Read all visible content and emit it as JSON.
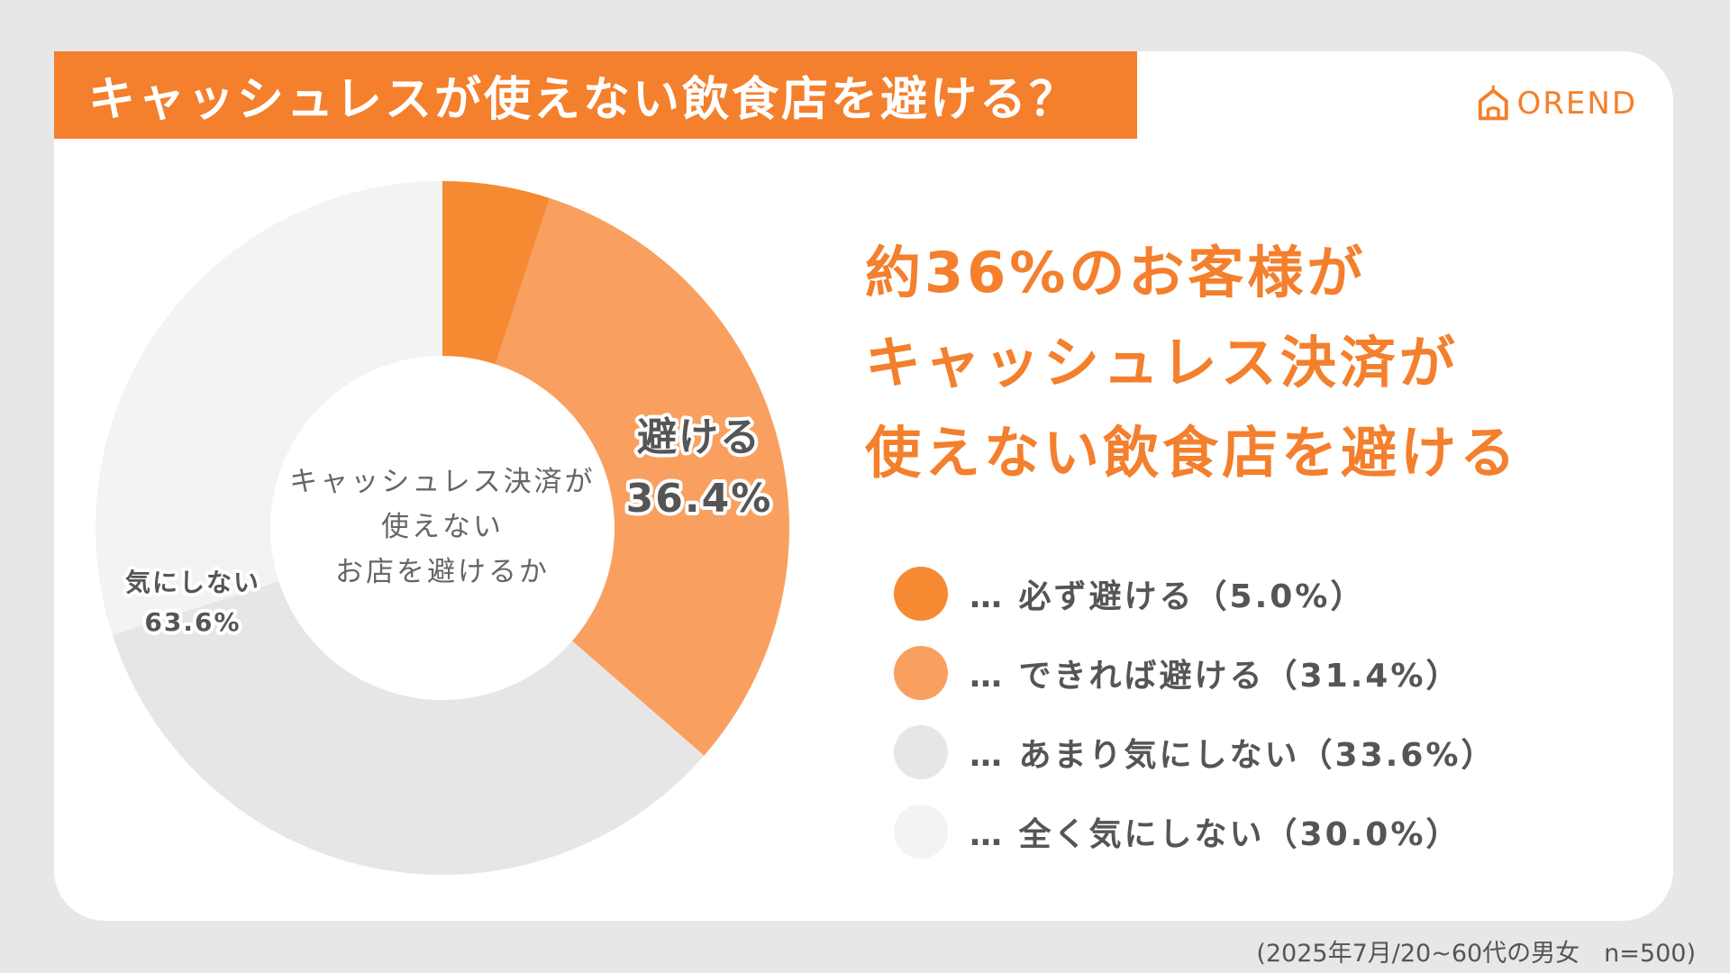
{
  "title": "キャッシュレスが使えない飲食店を避ける？",
  "logo": {
    "text": "OREND",
    "icon": "house-icon"
  },
  "headline": [
    "約36%のお客様が",
    "キャッシュレス決済が",
    "使えない飲食店を避ける"
  ],
  "footnote": "(2025年7月/20~60代の男女　n=500)",
  "colors": {
    "accent": "#f47f2c",
    "must_avoid": "#f58a33",
    "avoid_if_possible": "#f9a060",
    "not_much": "#e6e6e6",
    "not_at_all": "#f3f3f3"
  },
  "chart_data": {
    "type": "pie",
    "subtype": "donut",
    "center_label": [
      "キャッシュレス決済が",
      "使えない",
      "お店を避けるか"
    ],
    "slices": [
      {
        "label": "必ず避ける",
        "value": 5.0,
        "color": "#f58a33"
      },
      {
        "label": "できれば避ける",
        "value": 31.4,
        "color": "#f9a060"
      },
      {
        "label": "あまり気にしない",
        "value": 33.6,
        "color": "#e6e6e6"
      },
      {
        "label": "全く気にしない",
        "value": 30.0,
        "color": "#f3f3f3"
      }
    ],
    "group_labels": [
      {
        "name": "避ける",
        "value": "36.4%"
      },
      {
        "name": "気にしない",
        "value": "63.6%"
      }
    ],
    "legend": [
      "… 必ず避ける（5.0%）",
      "… できれば避ける（31.4%）",
      "… あまり気にしない（33.6%）",
      "… 全く気にしない（30.0%）"
    ]
  }
}
